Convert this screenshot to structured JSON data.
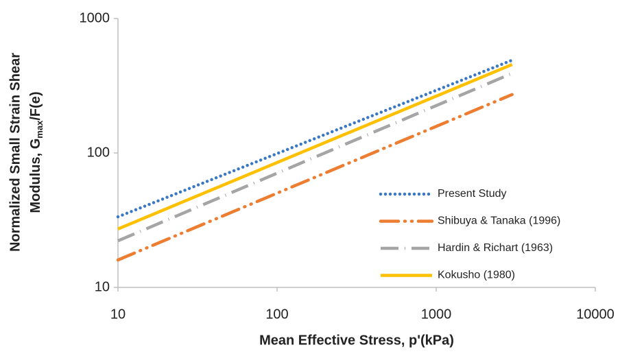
{
  "chart_data": {
    "type": "line",
    "xlabel": "Mean Effective Stress, p'(kPa)",
    "ylabel": {
      "line1": "Normalized Small Strain Shear",
      "line2": "Modulus, G",
      "subscript": "max",
      "suffix": "/F(e)"
    },
    "x": [
      10,
      3000
    ],
    "series": [
      {
        "name": "Present Study",
        "color": "#3a78c3",
        "dash": "dotted",
        "values": [
          33.5,
          490
        ]
      },
      {
        "name": "Shibuya & Tanaka (1996)",
        "color": "#ed7d31",
        "dash": "dash-dot-dot",
        "values": [
          16,
          272
        ]
      },
      {
        "name": "Hardin & Richart (1963)",
        "color": "#a5a5a5",
        "dash": "dash-dot",
        "values": [
          22.2,
          391
        ]
      },
      {
        "name": "Kokusho (1980)",
        "color": "#ffc000",
        "dash": "solid",
        "values": [
          27.2,
          455
        ]
      }
    ],
    "xlim": [
      10,
      10000
    ],
    "ylim": [
      10,
      1000
    ],
    "xticks": [
      10,
      100,
      1000,
      10000
    ],
    "yticks": [
      10,
      100,
      1000
    ],
    "xscale": "log",
    "yscale": "log",
    "grid": false,
    "legend": "lower right"
  }
}
